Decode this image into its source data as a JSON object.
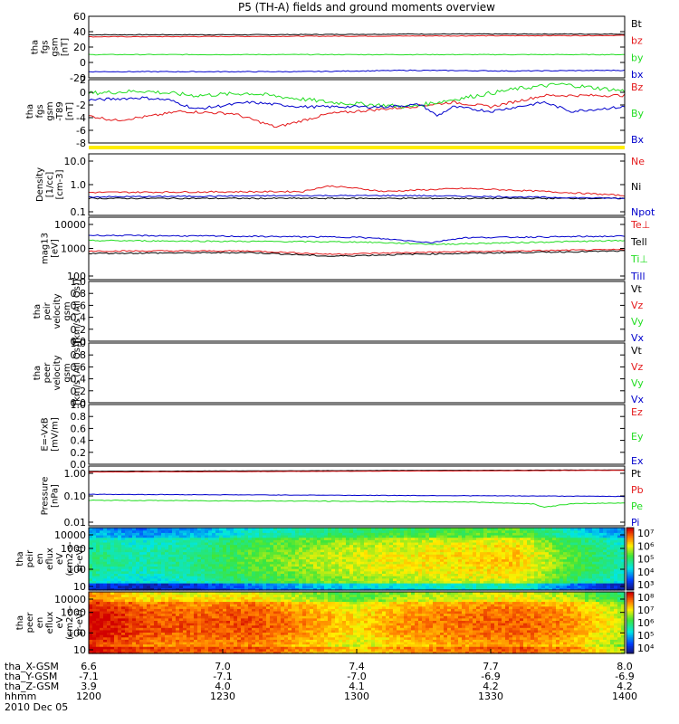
{
  "title": "P5 (TH-A) fields and ground moments overview",
  "colors": {
    "black": "#000000",
    "red": "#e41a1c",
    "green": "#22dd22",
    "blue": "#0000cc",
    "yellow": "#ffee00"
  },
  "chart_data": [
    {
      "type": "line",
      "ylabel": [
        "tha",
        "fgs",
        "gsm",
        "[nT]"
      ],
      "ylim": [
        -25,
        65
      ],
      "yticks": [
        "60",
        "40",
        "20",
        "0",
        "-20"
      ],
      "series": [
        {
          "name": "Bt",
          "color": "black",
          "base": 39,
          "noise": 0.5,
          "path": [
            [
              0,
              38
            ],
            [
              0.3,
              38
            ],
            [
              0.6,
              39
            ],
            [
              1,
              39
            ]
          ]
        },
        {
          "name": "bz",
          "color": "red",
          "base": 36,
          "noise": 0.5,
          "path": [
            [
              0,
              35
            ],
            [
              0.5,
              36
            ],
            [
              1,
              37
            ]
          ]
        },
        {
          "name": "by",
          "color": "green",
          "base": 9,
          "noise": 0.5,
          "path": [
            [
              0,
              9
            ],
            [
              1,
              9
            ]
          ]
        },
        {
          "name": "bx",
          "color": "blue",
          "base": -16,
          "noise": 0.6,
          "path": [
            [
              0,
              -16
            ],
            [
              0.4,
              -16
            ],
            [
              0.6,
              -14
            ],
            [
              0.8,
              -15
            ],
            [
              1,
              -14
            ]
          ]
        }
      ]
    },
    {
      "type": "line",
      "ylabel": [
        "tha",
        "fgs",
        "gsm",
        "-T89",
        "[nT]"
      ],
      "ylim": [
        -10,
        4
      ],
      "yticks": [
        "2",
        "0",
        "-2",
        "-4",
        "-6",
        "-8"
      ],
      "series": [
        {
          "name": "Bz",
          "color": "red",
          "noise": 0.3,
          "path": [
            [
              0,
              -4
            ],
            [
              0.05,
              -5
            ],
            [
              0.12,
              -4
            ],
            [
              0.17,
              -3
            ],
            [
              0.27,
              -3.5
            ],
            [
              0.35,
              -6.5
            ],
            [
              0.45,
              -3.5
            ],
            [
              0.6,
              -2
            ],
            [
              0.68,
              -1
            ],
            [
              0.75,
              -2
            ],
            [
              0.85,
              0.5
            ],
            [
              1,
              0.5
            ]
          ]
        },
        {
          "name": "By",
          "color": "green",
          "noise": 0.45,
          "path": [
            [
              0,
              1
            ],
            [
              0.1,
              1.5
            ],
            [
              0.2,
              0.5
            ],
            [
              0.3,
              1
            ],
            [
              0.45,
              -1
            ],
            [
              0.6,
              -2
            ],
            [
              0.7,
              0
            ],
            [
              0.8,
              2
            ],
            [
              0.88,
              3
            ],
            [
              1,
              1.5
            ]
          ]
        },
        {
          "name": "Bx",
          "color": "blue",
          "noise": 0.3,
          "path": [
            [
              0,
              -0.5
            ],
            [
              0.1,
              0
            ],
            [
              0.15,
              -0.5
            ],
            [
              0.2,
              -2.5
            ],
            [
              0.3,
              -1
            ],
            [
              0.4,
              -2
            ],
            [
              0.55,
              -2
            ],
            [
              0.62,
              -1.5
            ],
            [
              0.65,
              -4
            ],
            [
              0.68,
              -2
            ],
            [
              0.75,
              -3
            ],
            [
              0.85,
              -1
            ],
            [
              0.9,
              -3
            ],
            [
              1,
              -2
            ]
          ]
        }
      ]
    },
    {
      "type": "bar",
      "ylabel": [],
      "ylim": [
        0,
        1
      ],
      "yticks": [],
      "series": [
        {
          "name": "",
          "color": "yellow",
          "fill": 1
        }
      ]
    },
    {
      "type": "line",
      "scale": "log",
      "ylabel": [
        "Density",
        "[1/cc]",
        "[cm-3]"
      ],
      "ylim": [
        0.1,
        15
      ],
      "yticks": [
        "10.0",
        "1.0",
        "0.1"
      ],
      "series": [
        {
          "name": "Ne",
          "color": "red",
          "noise": 0.06,
          "path": [
            [
              0,
              0.65
            ],
            [
              0.4,
              0.7
            ],
            [
              0.45,
              1.1
            ],
            [
              0.55,
              0.7
            ],
            [
              0.7,
              0.9
            ],
            [
              1,
              0.5
            ]
          ]
        },
        {
          "name": "Ni",
          "color": "black",
          "noise": 0.05,
          "path": [
            [
              0,
              0.4
            ],
            [
              1,
              0.4
            ]
          ]
        },
        {
          "name": "Npot",
          "color": "blue",
          "noise": 0.05,
          "path": [
            [
              0,
              0.45
            ],
            [
              0.4,
              0.5
            ],
            [
              0.6,
              0.5
            ],
            [
              1,
              0.4
            ]
          ]
        }
      ]
    },
    {
      "type": "line",
      "scale": "log",
      "ylabel": [
        "mag13",
        "[eV]"
      ],
      "ylim": [
        100,
        12000
      ],
      "yticks": [
        "10000",
        "1000",
        "100"
      ],
      "series": [
        {
          "name": "Te⊥",
          "color": "red",
          "noise": 0.05,
          "path": [
            [
              0,
              900
            ],
            [
              0.3,
              900
            ],
            [
              0.45,
              700
            ],
            [
              0.6,
              800
            ],
            [
              1,
              1000
            ]
          ]
        },
        {
          "name": "Tell",
          "color": "black",
          "noise": 0.05,
          "path": [
            [
              0,
              750
            ],
            [
              0.3,
              800
            ],
            [
              0.45,
              600
            ],
            [
              0.6,
              700
            ],
            [
              1,
              900
            ]
          ]
        },
        {
          "name": "Ti⊥",
          "color": "green",
          "noise": 0.05,
          "path": [
            [
              0,
              2000
            ],
            [
              0.5,
              1800
            ],
            [
              0.65,
              1500
            ],
            [
              1,
              2000
            ]
          ]
        },
        {
          "name": "Till",
          "color": "blue",
          "noise": 0.05,
          "path": [
            [
              0,
              3000
            ],
            [
              0.5,
              2600
            ],
            [
              0.64,
              1700
            ],
            [
              0.7,
              2500
            ],
            [
              1,
              2800
            ]
          ]
        }
      ]
    },
    {
      "type": "line",
      "ylabel": [
        "tha",
        "peir",
        "velocity",
        "gsm",
        "[km/s (All Qs)]"
      ],
      "ylim": [
        0,
        1
      ],
      "yticks": [
        "1.0",
        "0.8",
        "0.6",
        "0.4",
        "0.2",
        "0.0"
      ],
      "series": [
        {
          "name": "Vt",
          "color": "black",
          "empty": true
        },
        {
          "name": "Vz",
          "color": "red",
          "empty": true
        },
        {
          "name": "Vy",
          "color": "green",
          "empty": true
        },
        {
          "name": "Vx",
          "color": "blue",
          "empty": true
        }
      ]
    },
    {
      "type": "line",
      "ylabel": [
        "tha",
        "peer",
        "velocity",
        "gsm",
        "[km/s (All Qs)]"
      ],
      "ylim": [
        0,
        1
      ],
      "yticks": [
        "1.0",
        "0.8",
        "0.6",
        "0.4",
        "0.2",
        "0.0"
      ],
      "series": [
        {
          "name": "Vt",
          "color": "black",
          "empty": true
        },
        {
          "name": "Vz",
          "color": "red",
          "empty": true
        },
        {
          "name": "Vy",
          "color": "green",
          "empty": true
        },
        {
          "name": "Vx",
          "color": "blue",
          "empty": true
        }
      ]
    },
    {
      "type": "line",
      "ylabel": [
        "E=-VxB",
        "[mV/m]"
      ],
      "ylim": [
        0,
        1
      ],
      "yticks": [
        "1.0",
        "0.8",
        "0.6",
        "0.4",
        "0.2",
        "0.0"
      ],
      "series": [
        {
          "name": "Ez",
          "color": "red",
          "empty": true
        },
        {
          "name": "Ey",
          "color": "green",
          "empty": true
        },
        {
          "name": "Ex",
          "color": "blue",
          "empty": true
        }
      ]
    },
    {
      "type": "line",
      "scale": "log",
      "ylabel": [
        "Pressure",
        "[nPa]"
      ],
      "ylim": [
        0.01,
        1.3
      ],
      "yticks": [
        "1.00",
        "0.10",
        "0.01"
      ],
      "series": [
        {
          "name": "Pt",
          "color": "black",
          "noise": 0.01,
          "path": [
            [
              0,
              0.85
            ],
            [
              1,
              0.95
            ]
          ]
        },
        {
          "name": "Pb",
          "color": "red",
          "noise": 0.01,
          "path": [
            [
              0,
              0.8
            ],
            [
              0.5,
              0.85
            ],
            [
              1,
              0.92
            ]
          ]
        },
        {
          "name": "Pe",
          "color": "green",
          "noise": 0.03,
          "path": [
            [
              0,
              0.08
            ],
            [
              0.4,
              0.075
            ],
            [
              0.7,
              0.07
            ],
            [
              0.83,
              0.06
            ],
            [
              0.85,
              0.045
            ],
            [
              0.9,
              0.06
            ],
            [
              1,
              0.065
            ]
          ]
        },
        {
          "name": "Pi",
          "color": "blue",
          "noise": 0.02,
          "path": [
            [
              0,
              0.13
            ],
            [
              0.5,
              0.12
            ],
            [
              1,
              0.11
            ]
          ]
        }
      ]
    },
    {
      "type": "heatmap",
      "scale": "log",
      "ylabel": [
        "tha",
        "peir",
        "en",
        "eflux",
        "eV",
        "(cm2-s-",
        "sr-eV)"
      ],
      "ylim": [
        8,
        20000
      ],
      "yticks": [
        "10000",
        "1000",
        "100",
        "10"
      ],
      "cbar_ticks": [
        "10⁷",
        "10⁶",
        "10⁵",
        "10⁴",
        "10³"
      ],
      "profile": [
        [
          0.0,
          0.35
        ],
        [
          0.1,
          0.3
        ],
        [
          0.2,
          0.35
        ],
        [
          0.3,
          0.45
        ],
        [
          0.45,
          0.55
        ],
        [
          0.6,
          0.6
        ],
        [
          0.7,
          0.62
        ],
        [
          0.8,
          0.65
        ],
        [
          0.9,
          0.45
        ],
        [
          1.0,
          0.3
        ]
      ]
    },
    {
      "type": "heatmap",
      "scale": "log",
      "ylabel": [
        "tha",
        "peer",
        "en",
        "eflux",
        "eV",
        "(cm2-s-",
        "sr-eV)"
      ],
      "ylim": [
        8,
        20000
      ],
      "yticks": [
        "10000",
        "1000",
        "100",
        "10"
      ],
      "cbar_ticks": [
        "10⁸",
        "10⁷",
        "10⁶",
        "10⁵",
        "10⁴"
      ],
      "profile": [
        [
          0.0,
          0.9
        ],
        [
          0.1,
          0.8
        ],
        [
          0.2,
          0.78
        ],
        [
          0.3,
          0.8
        ],
        [
          0.4,
          0.72
        ],
        [
          0.5,
          0.62
        ],
        [
          0.6,
          0.72
        ],
        [
          0.7,
          0.75
        ],
        [
          0.8,
          0.78
        ],
        [
          0.9,
          0.72
        ],
        [
          1.0,
          0.55
        ]
      ]
    }
  ],
  "xaxis": {
    "rows": [
      {
        "label": "tha_X-GSM",
        "values": [
          "6.6",
          "7.0",
          "7.4",
          "7.7",
          "8.0"
        ]
      },
      {
        "label": "tha_Y-GSM",
        "values": [
          "-7.1",
          "-7.1",
          "-7.0",
          "-6.9",
          "-6.9"
        ]
      },
      {
        "label": "tha_Z-GSM",
        "values": [
          "3.9",
          "4.0",
          "4.1",
          "4.2",
          "4.2"
        ]
      },
      {
        "label": "hhmm",
        "values": [
          "1200",
          "1230",
          "1300",
          "1330",
          "1400"
        ]
      }
    ],
    "date": "2010 Dec 05"
  }
}
